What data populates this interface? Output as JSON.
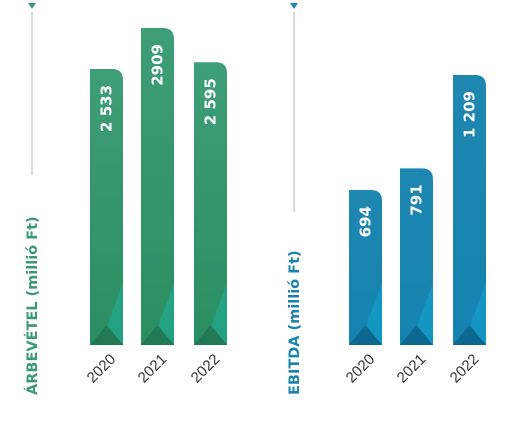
{
  "colors": {
    "green": "#3a9a71",
    "green_dark": "#217a54",
    "green_accent": "#1db39a",
    "blue": "#1b83ad",
    "blue_dark": "#0d6890",
    "blue_accent": "#12a6cf",
    "axis_line": "#b3b3b3",
    "year_text": "#333333"
  },
  "chart_data": [
    {
      "type": "bar",
      "title": "ÁRBEVÉTEL (millió Ft)",
      "categories": [
        "2020",
        "2021",
        "2022"
      ],
      "values": [
        2533,
        2909,
        2595
      ],
      "value_labels": [
        "2 533",
        "2909",
        "2 595"
      ],
      "color": "#3a9a71",
      "ylim": [
        0,
        2909
      ],
      "grid": false,
      "legend": "none"
    },
    {
      "type": "bar",
      "title": "EBITDA (millió Ft)",
      "categories": [
        "2020",
        "2021",
        "2022"
      ],
      "values": [
        694,
        791,
        1209
      ],
      "value_labels": [
        "694",
        "791",
        "1 209"
      ],
      "color": "#1b83ad",
      "ylim": [
        0,
        1209
      ],
      "grid": false,
      "legend": "none"
    }
  ]
}
